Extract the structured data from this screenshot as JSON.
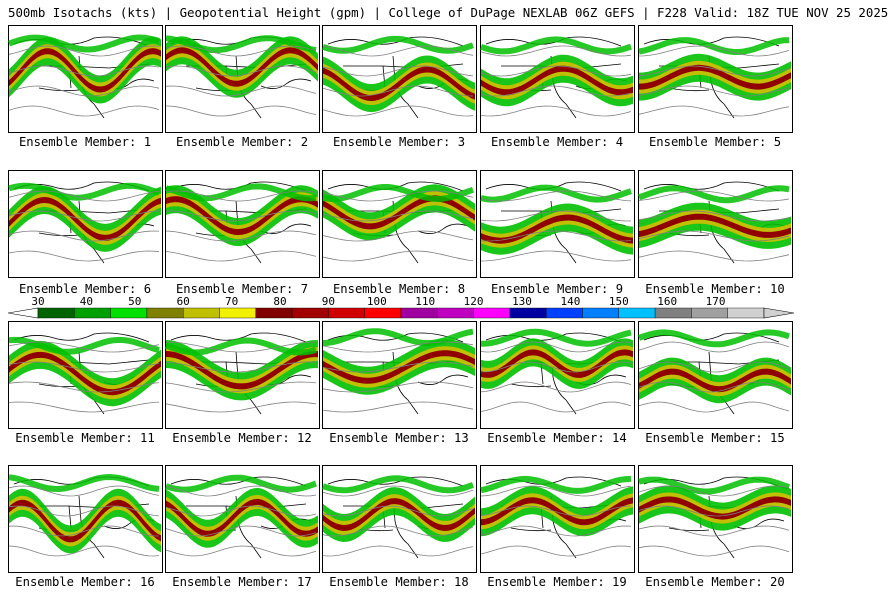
{
  "header": {
    "title": "500mb Isotachs (kts) | Geopotential Height (gpm) | College of DuPage NEXLAB   06Z GEFS | F228 Valid: 18Z TUE NOV 25 2025"
  },
  "members": [
    {
      "caption": "Ensemble Member: 1"
    },
    {
      "caption": "Ensemble Member: 2"
    },
    {
      "caption": "Ensemble Member: 3"
    },
    {
      "caption": "Ensemble Member: 4"
    },
    {
      "caption": "Ensemble Member: 5"
    },
    {
      "caption": "Ensemble Member: 6"
    },
    {
      "caption": "Ensemble Member: 7"
    },
    {
      "caption": "Ensemble Member: 8"
    },
    {
      "caption": "Ensemble Member: 9"
    },
    {
      "caption": "Ensemble Member: 10"
    },
    {
      "caption": "Ensemble Member: 11"
    },
    {
      "caption": "Ensemble Member: 12"
    },
    {
      "caption": "Ensemble Member: 13"
    },
    {
      "caption": "Ensemble Member: 14"
    },
    {
      "caption": "Ensemble Member: 15"
    },
    {
      "caption": "Ensemble Member: 16"
    },
    {
      "caption": "Ensemble Member: 17"
    },
    {
      "caption": "Ensemble Member: 18"
    },
    {
      "caption": "Ensemble Member: 19"
    },
    {
      "caption": "Ensemble Member: 20"
    }
  ],
  "colorbar": {
    "labels": [
      "30",
      "40",
      "50",
      "60",
      "70",
      "80",
      "90",
      "100",
      "110",
      "120",
      "130",
      "140",
      "150",
      "160",
      "170"
    ],
    "colors": [
      "#006400",
      "#00a000",
      "#00e000",
      "#808000",
      "#c0c000",
      "#f0f000",
      "#800000",
      "#a00000",
      "#d00000",
      "#ff0000",
      "#a000a0",
      "#c000c0",
      "#ff00ff",
      "#0000a0",
      "#0040ff",
      "#0080ff",
      "#00c0ff",
      "#808080",
      "#a0a0a0",
      "#d0d0d0"
    ]
  },
  "map_colors": {
    "jet_weak": "#00c000",
    "jet_moderate": "#c0c000",
    "jet_core": "#900000",
    "height_contour": "#808080",
    "coastline": "#000000"
  }
}
